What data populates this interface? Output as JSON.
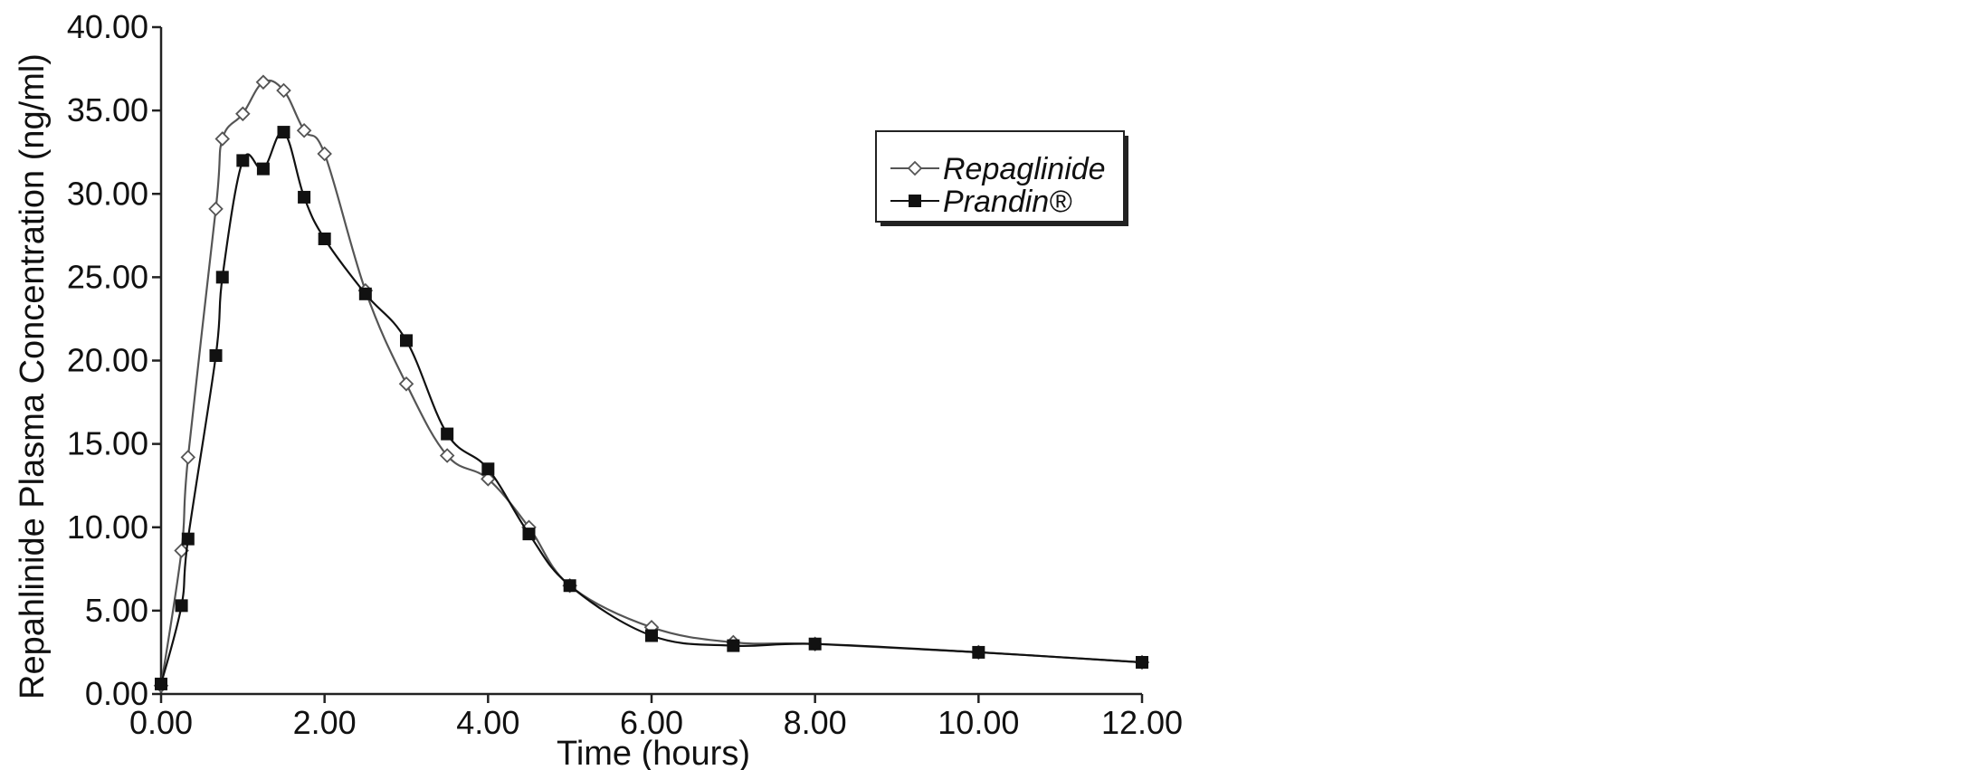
{
  "chart_data": {
    "type": "line",
    "title": "",
    "xlabel": "Time (hours)",
    "ylabel": "Repahlinide Plasma Concentration (ng/ml)",
    "xlim": [
      0,
      12
    ],
    "ylim": [
      0,
      40
    ],
    "x_ticks": [
      "0.00",
      "2.00",
      "4.00",
      "6.00",
      "8.00",
      "10.00",
      "12.00"
    ],
    "y_ticks": [
      "0.00",
      "5.00",
      "10.00",
      "15.00",
      "20.00",
      "25.00",
      "30.00",
      "35.00",
      "40.00"
    ],
    "grid": false,
    "legend_position": "top-right",
    "series": [
      {
        "name": "Repaglinide",
        "marker": "open-diamond",
        "color": "#555555",
        "points": [
          [
            0,
            0.5
          ],
          [
            0.25,
            8.6
          ],
          [
            0.33,
            14.2
          ],
          [
            0.67,
            29.1
          ],
          [
            0.75,
            33.3
          ],
          [
            1.0,
            34.8
          ],
          [
            1.25,
            36.7
          ],
          [
            1.5,
            36.2
          ],
          [
            1.75,
            33.8
          ],
          [
            2.0,
            32.4
          ],
          [
            2.5,
            24.2
          ],
          [
            3.0,
            18.6
          ],
          [
            3.5,
            14.3
          ],
          [
            4.0,
            12.9
          ],
          [
            4.5,
            10.0
          ],
          [
            5.0,
            6.5
          ],
          [
            6.0,
            4.0
          ],
          [
            7.0,
            3.1
          ],
          [
            8.0,
            3.0
          ],
          [
            10.0,
            2.5
          ],
          [
            12.0,
            1.9
          ]
        ]
      },
      {
        "name": "Prandin®",
        "marker": "filled-square",
        "color": "#111111",
        "points": [
          [
            0,
            0.6
          ],
          [
            0.25,
            5.3
          ],
          [
            0.33,
            9.3
          ],
          [
            0.67,
            20.3
          ],
          [
            0.75,
            25.0
          ],
          [
            1.0,
            32.0
          ],
          [
            1.25,
            31.5
          ],
          [
            1.5,
            33.7
          ],
          [
            1.75,
            29.8
          ],
          [
            2.0,
            27.3
          ],
          [
            2.5,
            24.0
          ],
          [
            3.0,
            21.2
          ],
          [
            3.5,
            15.6
          ],
          [
            4.0,
            13.5
          ],
          [
            4.5,
            9.6
          ],
          [
            5.0,
            6.5
          ],
          [
            6.0,
            3.5
          ],
          [
            7.0,
            2.9
          ],
          [
            8.0,
            3.0
          ],
          [
            10.0,
            2.5
          ],
          [
            12.0,
            1.9
          ]
        ]
      }
    ]
  }
}
